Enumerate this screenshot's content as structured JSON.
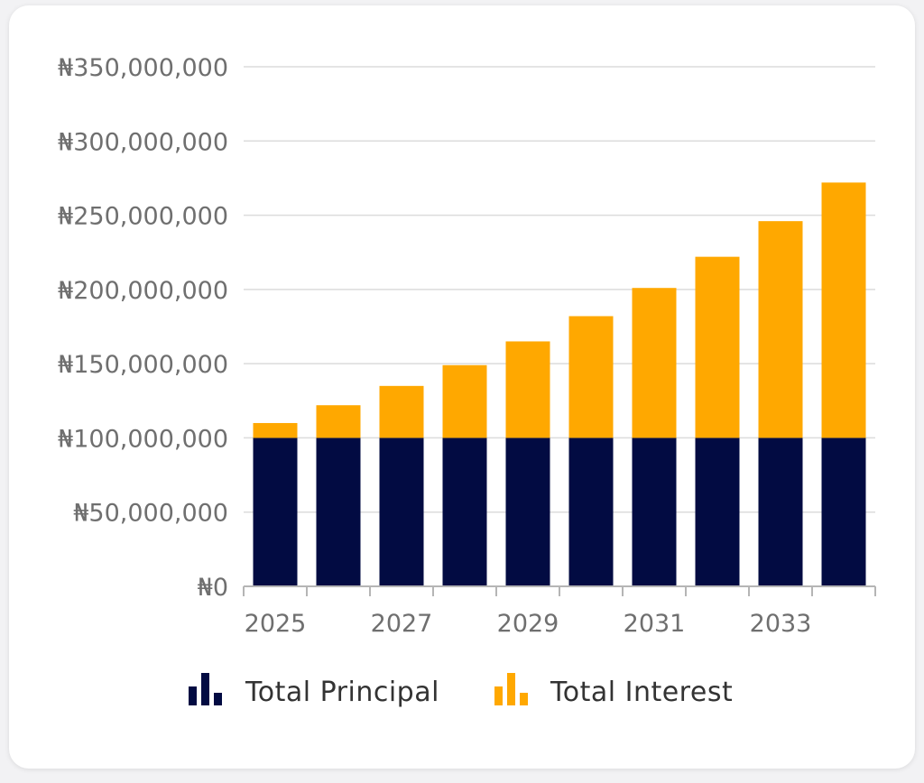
{
  "chart_data": {
    "type": "bar",
    "stacked": true,
    "categories": [
      "2025",
      "2026",
      "2027",
      "2028",
      "2029",
      "2030",
      "2031",
      "2032",
      "2033",
      "2034"
    ],
    "x_tick_labels": [
      "2025",
      "2027",
      "2029",
      "2031",
      "2033"
    ],
    "series": [
      {
        "name": "Total Principal",
        "color": "#020b42",
        "values": [
          100000000,
          100000000,
          100000000,
          100000000,
          100000000,
          100000000,
          100000000,
          100000000,
          100000000,
          100000000
        ]
      },
      {
        "name": "Total Interest",
        "color": "#ffa800",
        "values": [
          10000000,
          22000000,
          35000000,
          49000000,
          65000000,
          82000000,
          101000000,
          122000000,
          146000000,
          172000000
        ]
      }
    ],
    "ylim": [
      0,
      350000000
    ],
    "y_ticks": [
      0,
      50000000,
      100000000,
      150000000,
      200000000,
      250000000,
      300000000,
      350000000
    ],
    "y_tick_labels": [
      "₦0",
      "₦50,000,000",
      "₦100,000,000",
      "₦150,000,000",
      "₦200,000,000",
      "₦250,000,000",
      "₦300,000,000",
      "₦350,000,000"
    ],
    "grid": true,
    "legend_position": "bottom",
    "title": "",
    "xlabel": "",
    "ylabel": ""
  }
}
